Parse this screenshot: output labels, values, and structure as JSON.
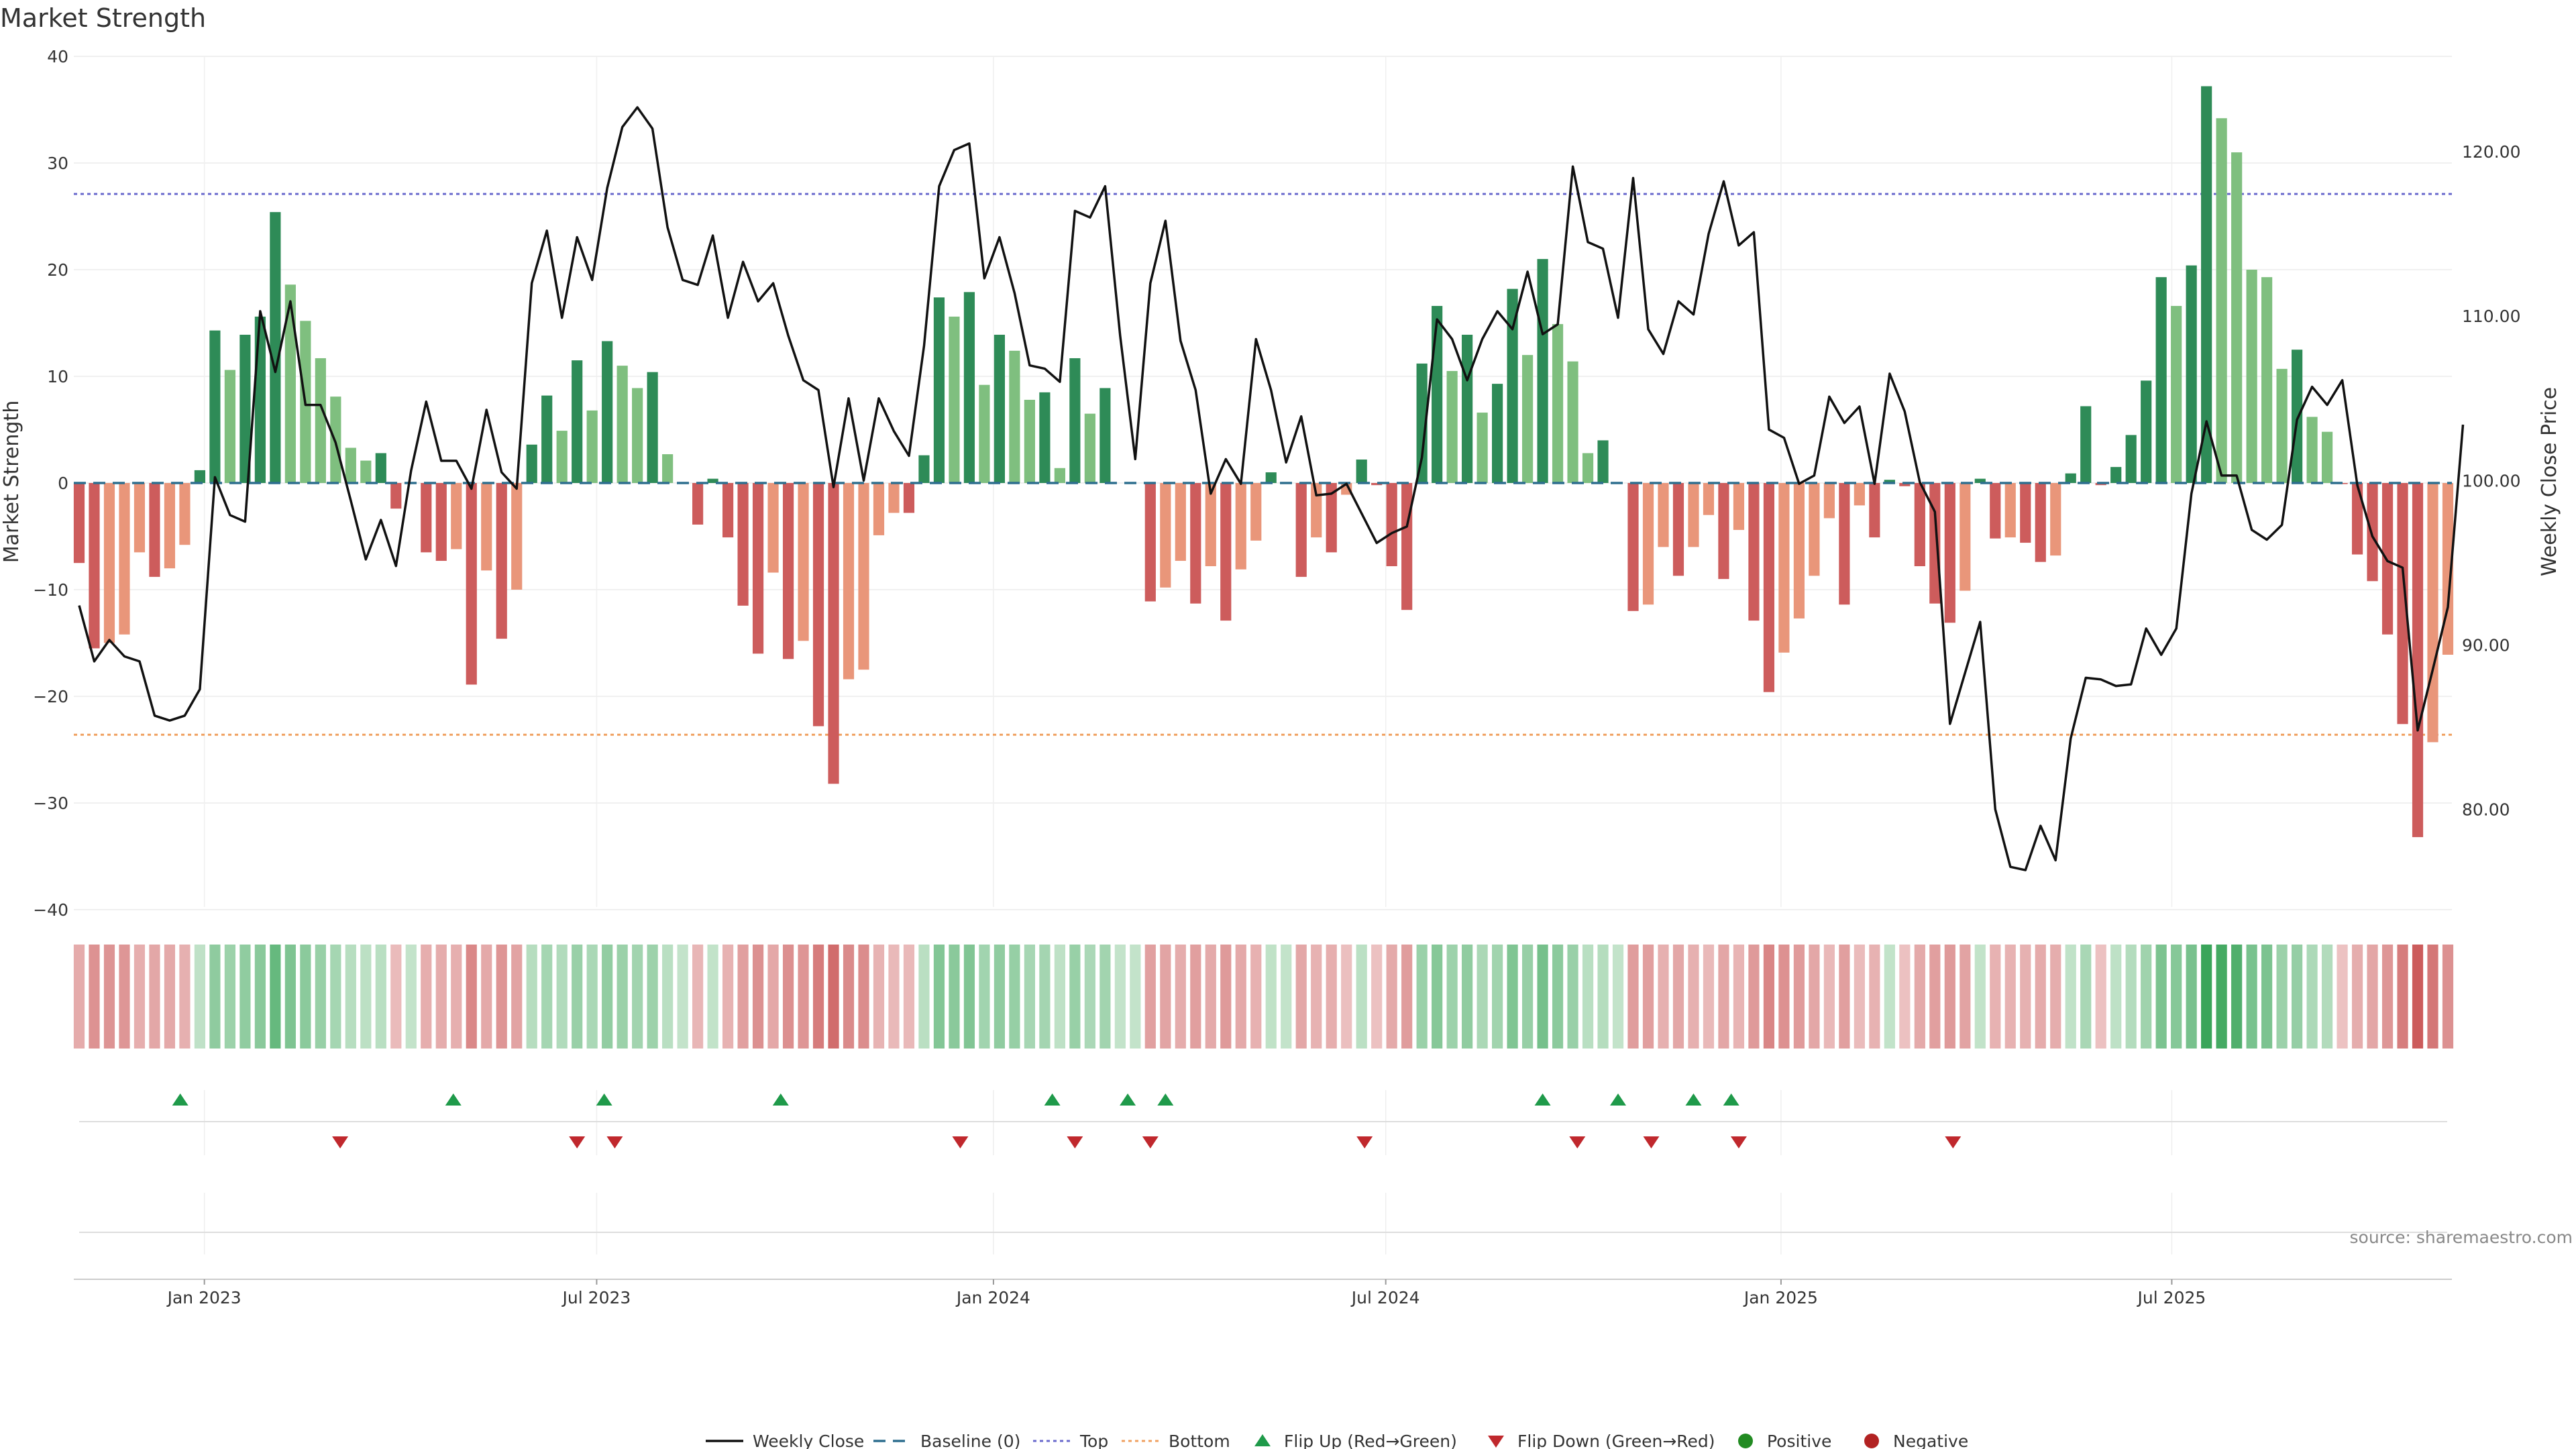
{
  "chart_data": {
    "type": "bar",
    "title": "Market Strength",
    "ylabel": "Market Strength",
    "y2label": "Weekly Close Price",
    "ylim": [
      -42,
      40
    ],
    "y2lim": [
      72.6,
      125.8
    ],
    "left_ticks": [
      40,
      30,
      20,
      10,
      0,
      -10,
      -20,
      -30,
      -40
    ],
    "left_tick_labels": [
      "40",
      "30",
      "20",
      "10",
      "0",
      "−10",
      "−20",
      "−30",
      "−40"
    ],
    "right_ticks": [
      120,
      110,
      100,
      90,
      80
    ],
    "right_tick_labels": [
      "120.00",
      "110.00",
      "100.00",
      "90.00",
      "80.00"
    ],
    "x_ticks": [
      {
        "label": "Jan 2023",
        "week": 8.3
      },
      {
        "label": "Jul 2023",
        "week": 34.3
      },
      {
        "label": "Jan 2024",
        "week": 60.6
      },
      {
        "label": "Jul 2024",
        "week": 86.6
      },
      {
        "label": "Jan 2025",
        "week": 112.8
      },
      {
        "label": "Jul 2025",
        "week": 138.7
      }
    ],
    "top_threshold": 27.1,
    "bottom_threshold": -23.6,
    "strength": [
      -7.5,
      -15.5,
      -15.0,
      -14.2,
      -6.5,
      -8.8,
      -8.0,
      -5.8,
      1.2,
      14.3,
      10.6,
      13.9,
      15.6,
      25.4,
      18.6,
      15.2,
      11.7,
      8.1,
      3.3,
      2.1,
      2.8,
      -2.4,
      0,
      -6.5,
      -7.3,
      -6.2,
      -18.9,
      -8.2,
      -14.6,
      -10.0,
      3.6,
      8.2,
      4.9,
      11.5,
      6.8,
      13.3,
      11.0,
      8.9,
      10.4,
      2.7,
      0,
      -3.9,
      0.4,
      -5.1,
      -11.5,
      -16.0,
      -8.4,
      -16.5,
      -14.8,
      -22.8,
      -28.2,
      -18.4,
      -17.5,
      -4.9,
      -2.8,
      -2.8,
      2.6,
      17.4,
      15.6,
      17.9,
      9.2,
      13.9,
      12.4,
      7.8,
      8.5,
      1.4,
      11.7,
      6.5,
      8.9,
      0,
      0,
      -11.1,
      -9.8,
      -7.3,
      -11.3,
      -7.8,
      -12.9,
      -8.1,
      -5.4,
      1.0,
      0,
      -8.8,
      -5.1,
      -6.5,
      -1.1,
      2.2,
      -0.2,
      -7.8,
      -11.9,
      11.2,
      16.6,
      10.5,
      13.9,
      6.6,
      9.3,
      18.2,
      12.0,
      21.0,
      14.9,
      11.4,
      2.8,
      4.0,
      0,
      -12.0,
      -11.4,
      -6.0,
      -8.7,
      -6.0,
      -3.0,
      -9.0,
      -4.4,
      -12.9,
      -19.6,
      -15.9,
      -12.7,
      -8.7,
      -3.3,
      -11.4,
      -2.1,
      -5.1,
      0.3,
      -0.3,
      -7.8,
      -11.3,
      -13.1,
      -10.1,
      0.4,
      -5.2,
      -5.1,
      -5.6,
      -7.4,
      -6.8,
      0.9,
      7.2,
      -0.2,
      1.5,
      4.5,
      9.6,
      19.3,
      16.6,
      20.4,
      37.2,
      34.2,
      31.0,
      20.0,
      19.3,
      10.7,
      12.5,
      6.2,
      4.8,
      -0.1,
      -6.7,
      -9.2,
      -14.2,
      -22.6,
      -33.2,
      -24.3,
      -16.1
    ],
    "weekly_close": [
      92.4,
      89.0,
      90.3,
      89.3,
      89.0,
      85.7,
      85.4,
      85.7,
      87.3,
      100.2,
      97.9,
      97.5,
      110.3,
      106.6,
      110.9,
      104.6,
      104.6,
      102.3,
      98.8,
      95.2,
      97.6,
      94.8,
      100.6,
      104.8,
      101.2,
      101.2,
      99.5,
      104.3,
      100.5,
      99.5,
      112.0,
      115.2,
      109.9,
      114.8,
      112.2,
      117.8,
      121.5,
      122.7,
      121.4,
      115.4,
      112.2,
      111.9,
      114.9,
      109.9,
      113.3,
      110.9,
      112.0,
      108.8,
      106.1,
      105.5,
      99.6,
      105.0,
      100.0,
      105.0,
      103.0,
      101.5,
      108.2,
      117.9,
      120.1,
      120.5,
      112.3,
      114.8,
      111.4,
      107.0,
      106.8,
      106.0,
      116.4,
      116.0,
      117.9,
      108.8,
      101.3,
      112.0,
      115.8,
      108.5,
      105.5,
      99.2,
      101.3,
      99.8,
      108.6,
      105.5,
      101.1,
      103.9,
      99.1,
      99.2,
      99.8,
      98.0,
      96.2,
      96.8,
      97.2,
      101.4,
      109.8,
      108.6,
      106.1,
      108.6,
      110.3,
      109.2,
      112.7,
      108.9,
      109.5,
      119.1,
      114.5,
      114.1,
      109.9,
      118.4,
      109.2,
      107.7,
      110.9,
      110.1,
      115.0,
      118.2,
      114.3,
      115.1,
      103.1,
      102.6,
      99.8,
      100.3,
      105.1,
      103.5,
      104.5,
      99.8,
      106.5,
      104.2,
      99.9,
      98.1,
      85.2,
      88.3,
      91.4,
      80.0,
      76.5,
      76.3,
      79.0,
      76.9,
      84.3,
      88.0,
      87.9,
      87.5,
      87.6,
      91.0,
      89.4,
      91.0,
      99.2,
      103.6,
      100.3,
      100.3,
      97.0,
      96.4,
      97.3,
      103.7,
      105.7,
      104.6,
      106.1,
      99.7,
      96.6,
      95.1,
      94.7,
      84.8,
      88.5,
      92.3,
      103.4
    ],
    "flip_up_weeks": [
      6.7,
      24.8,
      34.8,
      46.5,
      64.5,
      69.5,
      72.0,
      97.0,
      102.0,
      107.0,
      109.5
    ],
    "flip_down_weeks": [
      17.3,
      33.0,
      35.5,
      58.4,
      66.0,
      71.0,
      85.2,
      99.3,
      104.2,
      110.0,
      124.2
    ],
    "series": [
      {
        "name": "Weekly Close"
      },
      {
        "name": "Baseline (0)"
      },
      {
        "name": "Top"
      },
      {
        "name": "Bottom"
      },
      {
        "name": "Flip Up (Red→Green)"
      },
      {
        "name": "Flip Down (Green→Red)"
      },
      {
        "name": "Positive"
      },
      {
        "name": "Negative"
      }
    ],
    "colors": {
      "pos_strong": "#2e8b57",
      "pos_light": "#7fbf7f",
      "neg_strong": "#cd5c5c",
      "neg_light": "#e9967a",
      "top_line": "#6a6acd",
      "bottom_line": "#f0a060",
      "baseline": "#2f6f8f",
      "flip_up": "#1f9a4a",
      "flip_down": "#c0282d",
      "positive_dot": "#228b22",
      "negative_dot": "#b22222",
      "close_line": "#111111"
    },
    "source": "source: sharemaestro.com"
  }
}
